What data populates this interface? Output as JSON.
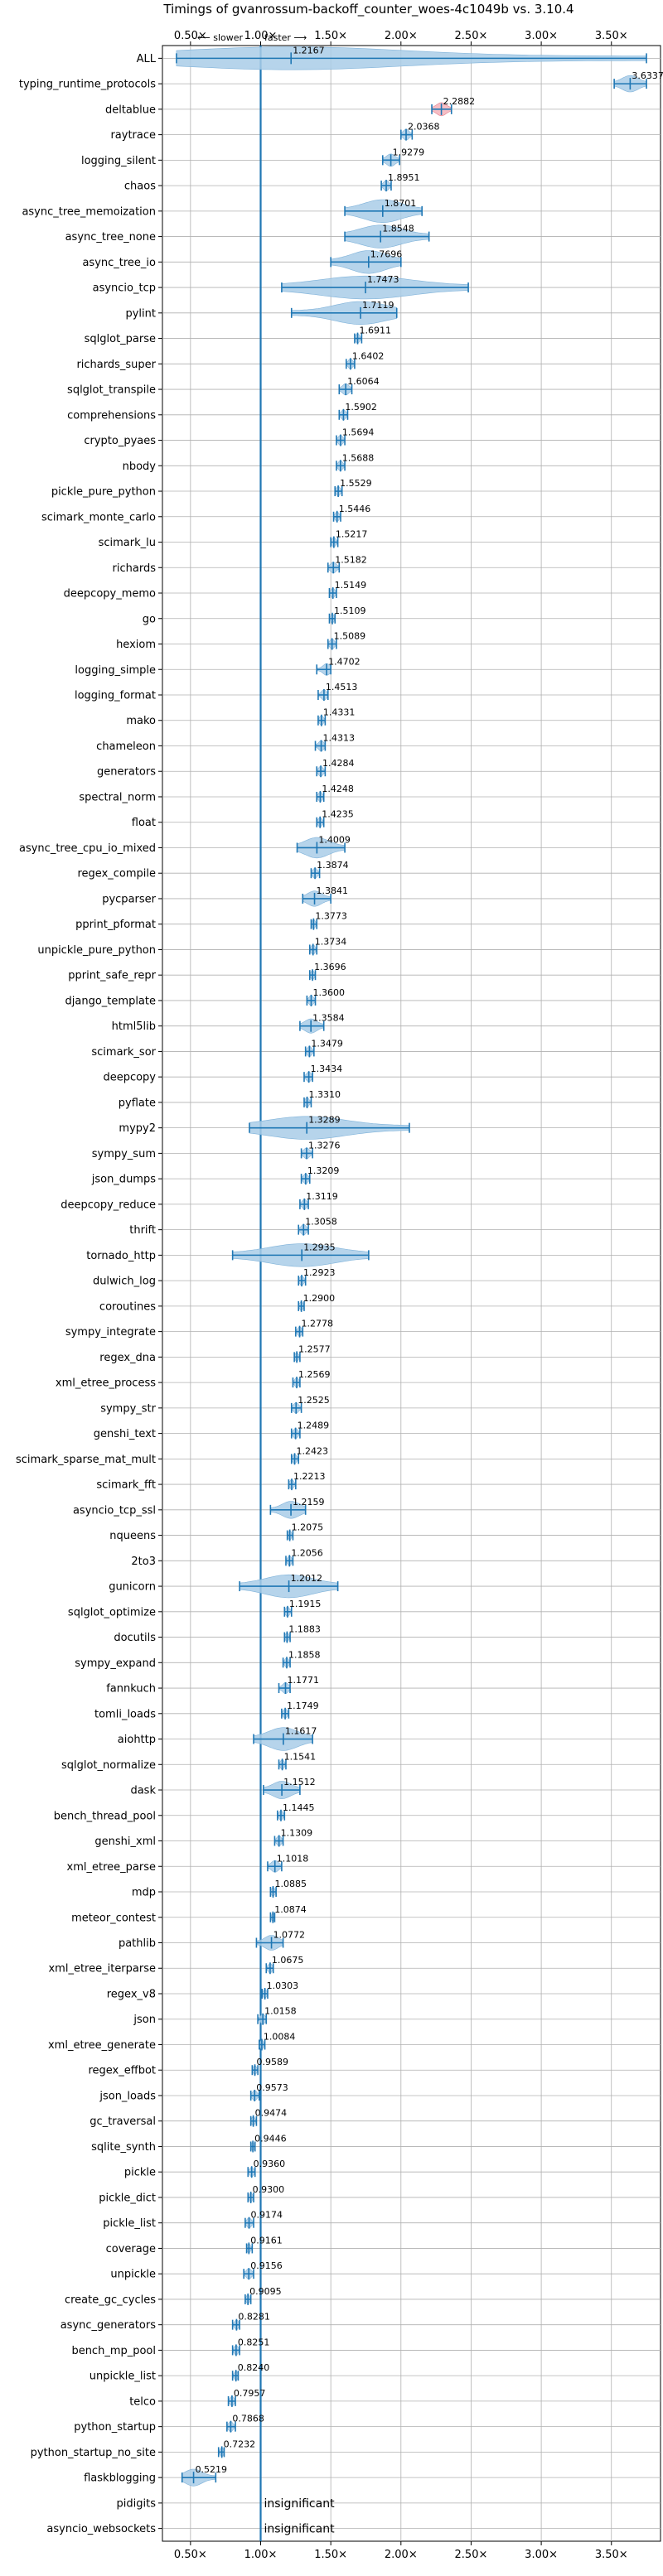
{
  "chart_data": {
    "type": "violin",
    "title": "Timings of gvanrossum-backoff_counter_woes-4c1049b vs. 3.10.4",
    "xlabel": "",
    "ylabel": "",
    "xlim": [
      0.3,
      3.85
    ],
    "grid": true,
    "reference_line": 1.0,
    "slower_label": "⟵ slower",
    "faster_label": "faster ⟶",
    "x_ticks": [
      0.5,
      1.0,
      1.5,
      2.0,
      2.5,
      3.0,
      3.5
    ],
    "x_tick_labels": [
      "0.50×",
      "1.00×",
      "1.50×",
      "2.00×",
      "2.50×",
      "3.00×",
      "3.50×"
    ],
    "categories": [
      "ALL",
      "typing_runtime_protocols",
      "deltablue",
      "raytrace",
      "logging_silent",
      "chaos",
      "async_tree_memoization",
      "async_tree_none",
      "async_tree_io",
      "asyncio_tcp",
      "pylint",
      "sqlglot_parse",
      "richards_super",
      "sqlglot_transpile",
      "comprehensions",
      "crypto_pyaes",
      "nbody",
      "pickle_pure_python",
      "scimark_monte_carlo",
      "scimark_lu",
      "richards",
      "deepcopy_memo",
      "go",
      "hexiom",
      "logging_simple",
      "logging_format",
      "mako",
      "chameleon",
      "generators",
      "spectral_norm",
      "float",
      "async_tree_cpu_io_mixed",
      "regex_compile",
      "pycparser",
      "pprint_pformat",
      "unpickle_pure_python",
      "pprint_safe_repr",
      "django_template",
      "html5lib",
      "scimark_sor",
      "deepcopy",
      "pyflate",
      "mypy2",
      "sympy_sum",
      "json_dumps",
      "deepcopy_reduce",
      "thrift",
      "tornado_http",
      "dulwich_log",
      "coroutines",
      "sympy_integrate",
      "regex_dna",
      "xml_etree_process",
      "sympy_str",
      "genshi_text",
      "scimark_sparse_mat_mult",
      "scimark_fft",
      "asyncio_tcp_ssl",
      "nqueens",
      "2to3",
      "gunicorn",
      "sqlglot_optimize",
      "docutils",
      "sympy_expand",
      "fannkuch",
      "tomli_loads",
      "aiohttp",
      "sqlglot_normalize",
      "dask",
      "bench_thread_pool",
      "genshi_xml",
      "xml_etree_parse",
      "mdp",
      "meteor_contest",
      "pathlib",
      "xml_etree_iterparse",
      "regex_v8",
      "json",
      "xml_etree_generate",
      "regex_effbot",
      "json_loads",
      "gc_traversal",
      "sqlite_synth",
      "pickle",
      "pickle_dict",
      "pickle_list",
      "coverage",
      "unpickle",
      "create_gc_cycles",
      "async_generators",
      "bench_mp_pool",
      "unpickle_list",
      "telco",
      "python_startup",
      "python_startup_no_site",
      "flaskblogging",
      "pidigits",
      "asyncio_websockets"
    ],
    "values": [
      1.2167,
      3.6337,
      2.2882,
      2.0368,
      1.9279,
      1.8951,
      1.8701,
      1.8548,
      1.7696,
      1.7473,
      1.7119,
      1.6911,
      1.6402,
      1.6064,
      1.5902,
      1.5694,
      1.5688,
      1.5529,
      1.5446,
      1.5217,
      1.5182,
      1.5149,
      1.5109,
      1.5089,
      1.4702,
      1.4513,
      1.4331,
      1.4313,
      1.4284,
      1.4248,
      1.4235,
      1.4009,
      1.3874,
      1.3841,
      1.3773,
      1.3734,
      1.3696,
      1.36,
      1.3584,
      1.3479,
      1.3434,
      1.331,
      1.3289,
      1.3276,
      1.3209,
      1.3119,
      1.3058,
      1.2935,
      1.2923,
      1.29,
      1.2778,
      1.2577,
      1.2569,
      1.2525,
      1.2489,
      1.2423,
      1.2213,
      1.2159,
      1.2075,
      1.2056,
      1.2012,
      1.1915,
      1.1883,
      1.1858,
      1.1771,
      1.1749,
      1.1617,
      1.1541,
      1.1512,
      1.1445,
      1.1309,
      1.1018,
      1.0885,
      1.0874,
      1.0772,
      1.0675,
      1.0303,
      1.0158,
      1.0084,
      0.9589,
      0.9573,
      0.9474,
      0.9446,
      0.936,
      0.93,
      0.9174,
      0.9161,
      0.9156,
      0.9095,
      0.8281,
      0.8251,
      0.824,
      0.7957,
      0.7868,
      0.7232,
      0.5219,
      null,
      null
    ],
    "value_labels": [
      "1.2167",
      "3.6337",
      "2.2882",
      "2.0368",
      "1.9279",
      "1.8951",
      "1.8701",
      "1.8548",
      "1.7696",
      "1.7473",
      "1.7119",
      "1.6911",
      "1.6402",
      "1.6064",
      "1.5902",
      "1.5694",
      "1.5688",
      "1.5529",
      "1.5446",
      "1.5217",
      "1.5182",
      "1.5149",
      "1.5109",
      "1.5089",
      "1.4702",
      "1.4513",
      "1.4331",
      "1.4313",
      "1.4284",
      "1.4248",
      "1.4235",
      "1.4009",
      "1.3874",
      "1.3841",
      "1.3773",
      "1.3734",
      "1.3696",
      "1.3600",
      "1.3584",
      "1.3479",
      "1.3434",
      "1.3310",
      "1.3289",
      "1.3276",
      "1.3209",
      "1.3119",
      "1.3058",
      "1.2935",
      "1.2923",
      "1.2900",
      "1.2778",
      "1.2577",
      "1.2569",
      "1.2525",
      "1.2489",
      "1.2423",
      "1.2213",
      "1.2159",
      "1.2075",
      "1.2056",
      "1.2012",
      "1.1915",
      "1.1883",
      "1.1858",
      "1.1771",
      "1.1749",
      "1.1617",
      "1.1541",
      "1.1512",
      "1.1445",
      "1.1309",
      "1.1018",
      "1.0885",
      "1.0874",
      "1.0772",
      "1.0675",
      "1.0303",
      "1.0158",
      "1.0084",
      "0.9589",
      "0.9573",
      "0.9474",
      "0.9446",
      "0.9360",
      "0.9300",
      "0.9174",
      "0.9161",
      "0.9156",
      "0.9095",
      "0.8281",
      "0.8251",
      "0.8240",
      "0.7957",
      "0.7868",
      "0.7232",
      "0.5219",
      "insignificant",
      "insignificant"
    ],
    "ranges": [
      [
        0.4,
        3.75
      ],
      [
        3.52,
        3.75
      ],
      [
        2.22,
        2.36
      ],
      [
        2.0,
        2.08
      ],
      [
        1.87,
        1.99
      ],
      [
        1.86,
        1.93
      ],
      [
        1.6,
        2.15
      ],
      [
        1.6,
        2.2
      ],
      [
        1.5,
        2.0
      ],
      [
        1.15,
        2.48
      ],
      [
        1.22,
        1.97
      ],
      [
        1.67,
        1.72
      ],
      [
        1.61,
        1.67
      ],
      [
        1.56,
        1.65
      ],
      [
        1.56,
        1.62
      ],
      [
        1.54,
        1.6
      ],
      [
        1.54,
        1.6
      ],
      [
        1.53,
        1.58
      ],
      [
        1.52,
        1.57
      ],
      [
        1.5,
        1.55
      ],
      [
        1.48,
        1.56
      ],
      [
        1.49,
        1.54
      ],
      [
        1.49,
        1.53
      ],
      [
        1.48,
        1.54
      ],
      [
        1.4,
        1.5
      ],
      [
        1.41,
        1.48
      ],
      [
        1.41,
        1.46
      ],
      [
        1.39,
        1.46
      ],
      [
        1.4,
        1.46
      ],
      [
        1.4,
        1.45
      ],
      [
        1.4,
        1.45
      ],
      [
        1.26,
        1.6
      ],
      [
        1.36,
        1.42
      ],
      [
        1.3,
        1.5
      ],
      [
        1.36,
        1.4
      ],
      [
        1.35,
        1.4
      ],
      [
        1.35,
        1.39
      ],
      [
        1.33,
        1.39
      ],
      [
        1.28,
        1.45
      ],
      [
        1.32,
        1.38
      ],
      [
        1.31,
        1.37
      ],
      [
        1.31,
        1.36
      ],
      [
        0.92,
        2.06
      ],
      [
        1.29,
        1.37
      ],
      [
        1.29,
        1.35
      ],
      [
        1.28,
        1.34
      ],
      [
        1.27,
        1.34
      ],
      [
        0.8,
        1.77
      ],
      [
        1.27,
        1.32
      ],
      [
        1.27,
        1.31
      ],
      [
        1.25,
        1.3
      ],
      [
        1.24,
        1.28
      ],
      [
        1.23,
        1.28
      ],
      [
        1.22,
        1.29
      ],
      [
        1.22,
        1.28
      ],
      [
        1.22,
        1.27
      ],
      [
        1.2,
        1.25
      ],
      [
        1.07,
        1.32
      ],
      [
        1.19,
        1.23
      ],
      [
        1.18,
        1.23
      ],
      [
        0.85,
        1.55
      ],
      [
        1.17,
        1.22
      ],
      [
        1.17,
        1.21
      ],
      [
        1.16,
        1.21
      ],
      [
        1.13,
        1.21
      ],
      [
        1.15,
        1.2
      ],
      [
        0.95,
        1.37
      ],
      [
        1.13,
        1.18
      ],
      [
        1.02,
        1.28
      ],
      [
        1.12,
        1.17
      ],
      [
        1.1,
        1.16
      ],
      [
        1.05,
        1.15
      ],
      [
        1.07,
        1.11
      ],
      [
        1.07,
        1.1
      ],
      [
        0.97,
        1.16
      ],
      [
        1.04,
        1.09
      ],
      [
        1.01,
        1.05
      ],
      [
        0.98,
        1.04
      ],
      [
        0.99,
        1.03
      ],
      [
        0.94,
        0.98
      ],
      [
        0.93,
        0.99
      ],
      [
        0.93,
        0.97
      ],
      [
        0.93,
        0.96
      ],
      [
        0.91,
        0.96
      ],
      [
        0.91,
        0.95
      ],
      [
        0.89,
        0.95
      ],
      [
        0.9,
        0.94
      ],
      [
        0.88,
        0.95
      ],
      [
        0.89,
        0.93
      ],
      [
        0.8,
        0.85
      ],
      [
        0.8,
        0.85
      ],
      [
        0.8,
        0.84
      ],
      [
        0.77,
        0.82
      ],
      [
        0.76,
        0.82
      ],
      [
        0.7,
        0.74
      ],
      [
        0.44,
        0.68
      ],
      null,
      null
    ],
    "colors": {
      "violin_fill": "#a9cce7",
      "line": "#1f77b4",
      "highlight_fill": "#f5b3bb",
      "grid": "#b0b0b0",
      "axes": "#000000"
    }
  }
}
